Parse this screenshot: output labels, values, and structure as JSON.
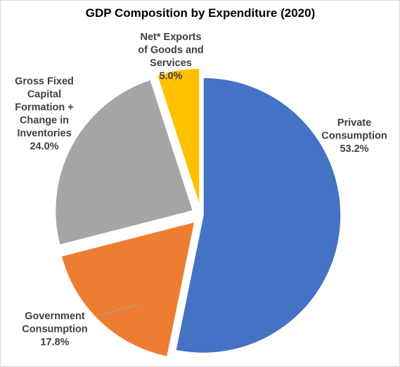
{
  "chart_data": {
    "type": "pie",
    "title": "GDP Composition  by Expenditure (2020)",
    "slices": [
      {
        "label_lines": [
          "Private",
          "Consumption"
        ],
        "value_text": "53.2%",
        "value": 53.2,
        "color": "#4472C4"
      },
      {
        "label_lines": [
          "Government",
          "Consumption"
        ],
        "value_text": "17.8%",
        "value": 17.8,
        "color": "#ED7D31"
      },
      {
        "label_lines": [
          "Gross Fixed",
          "Capital",
          "Formation +",
          "Change in",
          "Inventories"
        ],
        "value_text": "24.0%",
        "value": 24.0,
        "color": "#A5A5A5"
      },
      {
        "label_lines": [
          "Net* Exports",
          "of Goods and",
          "Services"
        ],
        "value_text": "5.0%",
        "value": 5.0,
        "color": "#FFC000"
      }
    ],
    "legend": "none",
    "start_angle_deg": 0,
    "direction": "clockwise"
  }
}
